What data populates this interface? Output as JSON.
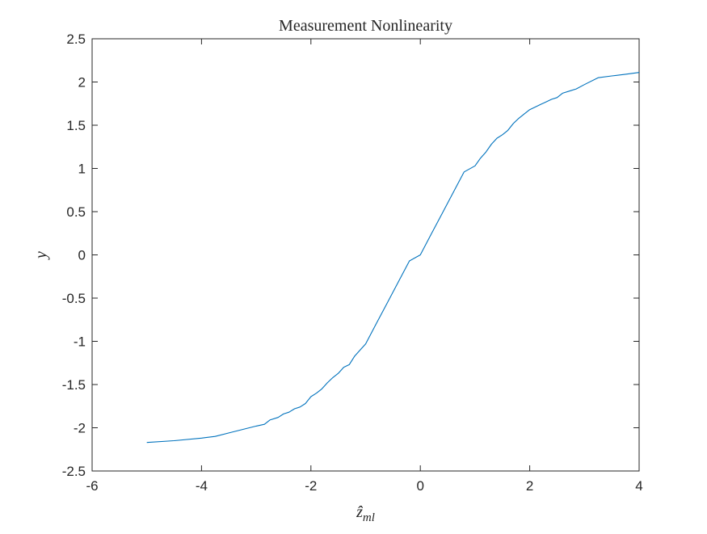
{
  "chart_data": {
    "type": "line",
    "title": "Measurement Nonlinearity",
    "xlabel": "ẑml",
    "xlabel_base": "ẑ",
    "xlabel_sub": "ml",
    "ylabel": "y",
    "xlim": [
      -6,
      4
    ],
    "ylim": [
      -2.5,
      2.5
    ],
    "xticks": [
      -6,
      -4,
      -2,
      0,
      2,
      4
    ],
    "yticks": [
      -2.5,
      -2,
      -1.5,
      -1,
      -0.5,
      0,
      0.5,
      1,
      1.5,
      2,
      2.5
    ],
    "grid": false,
    "legend": "none",
    "series": [
      {
        "color": "#0072bd",
        "x": [
          -5.0,
          -4.5,
          -4.0,
          -3.75,
          -3.5,
          -3.25,
          -3.0,
          -2.85,
          -2.75,
          -2.6,
          -2.5,
          -2.4,
          -2.3,
          -2.2,
          -2.1,
          -2.0,
          -1.9,
          -1.8,
          -1.7,
          -1.6,
          -1.5,
          -1.4,
          -1.3,
          -1.2,
          -1.1,
          -1.0,
          -0.8,
          -0.6,
          -0.4,
          -0.2,
          0.0,
          0.2,
          0.4,
          0.6,
          0.8,
          1.0,
          1.1,
          1.2,
          1.3,
          1.4,
          1.5,
          1.6,
          1.7,
          1.8,
          1.9,
          2.0,
          2.1,
          2.2,
          2.3,
          2.4,
          2.5,
          2.6,
          2.75,
          2.85,
          3.0,
          3.25,
          3.5,
          3.75,
          4.0
        ],
        "y": [
          -2.17,
          -2.15,
          -2.12,
          -2.1,
          -2.06,
          -2.02,
          -1.98,
          -1.96,
          -1.91,
          -1.88,
          -1.84,
          -1.82,
          -1.78,
          -1.76,
          -1.72,
          -1.64,
          -1.6,
          -1.55,
          -1.48,
          -1.42,
          -1.37,
          -1.3,
          -1.27,
          -1.17,
          -1.1,
          -1.03,
          -0.79,
          -0.55,
          -0.31,
          -0.07,
          0.0,
          0.24,
          0.48,
          0.72,
          0.96,
          1.03,
          1.12,
          1.19,
          1.28,
          1.35,
          1.39,
          1.44,
          1.52,
          1.58,
          1.63,
          1.68,
          1.71,
          1.74,
          1.77,
          1.8,
          1.82,
          1.87,
          1.9,
          1.92,
          1.97,
          2.05,
          2.07,
          2.09,
          2.11
        ]
      }
    ]
  }
}
